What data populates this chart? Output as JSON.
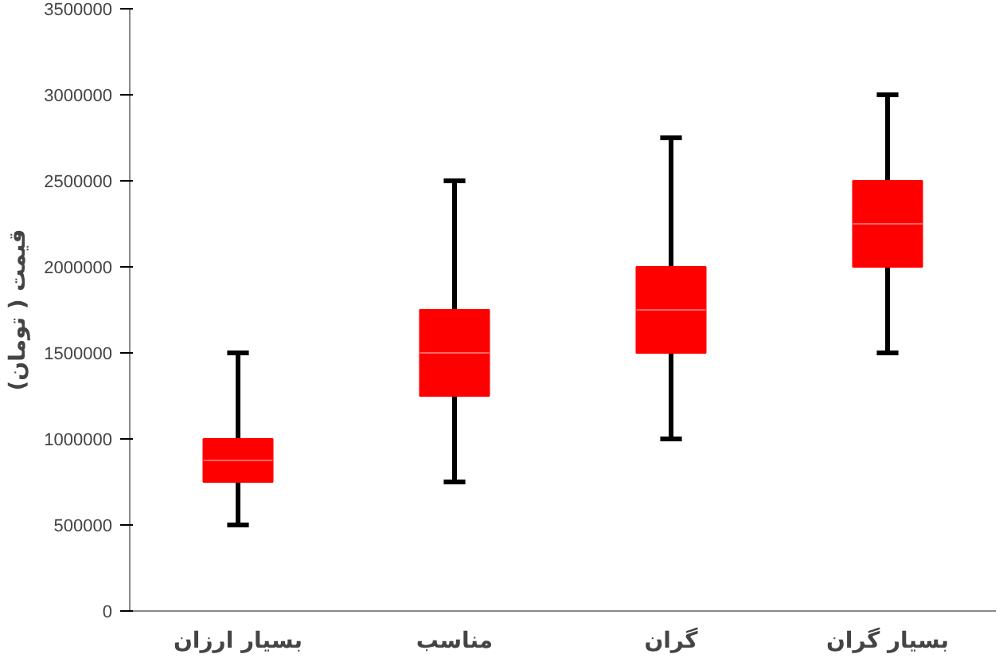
{
  "chart_data": {
    "type": "box",
    "categories": [
      "بسیار ارزان",
      "مناسب",
      "گران",
      "بسیار گران"
    ],
    "boxes": [
      {
        "low": 500000,
        "q1": 750000,
        "median": 875000,
        "q3": 1000000,
        "high": 1500000
      },
      {
        "low": 750000,
        "q1": 1250000,
        "median": 1500000,
        "q3": 1750000,
        "high": 2500000
      },
      {
        "low": 1000000,
        "q1": 1500000,
        "median": 1750000,
        "q3": 2000000,
        "high": 2750000
      },
      {
        "low": 1500000,
        "q1": 2000000,
        "median": 2250000,
        "q3": 2500000,
        "high": 3000000
      }
    ],
    "color": "#ff0000",
    "ylabel": "قیمت ( تومان)",
    "ylim": [
      0,
      3500000
    ],
    "yticks": [
      0,
      500000,
      1000000,
      1500000,
      2000000,
      2500000,
      3000000,
      3500000
    ],
    "grid": false
  }
}
